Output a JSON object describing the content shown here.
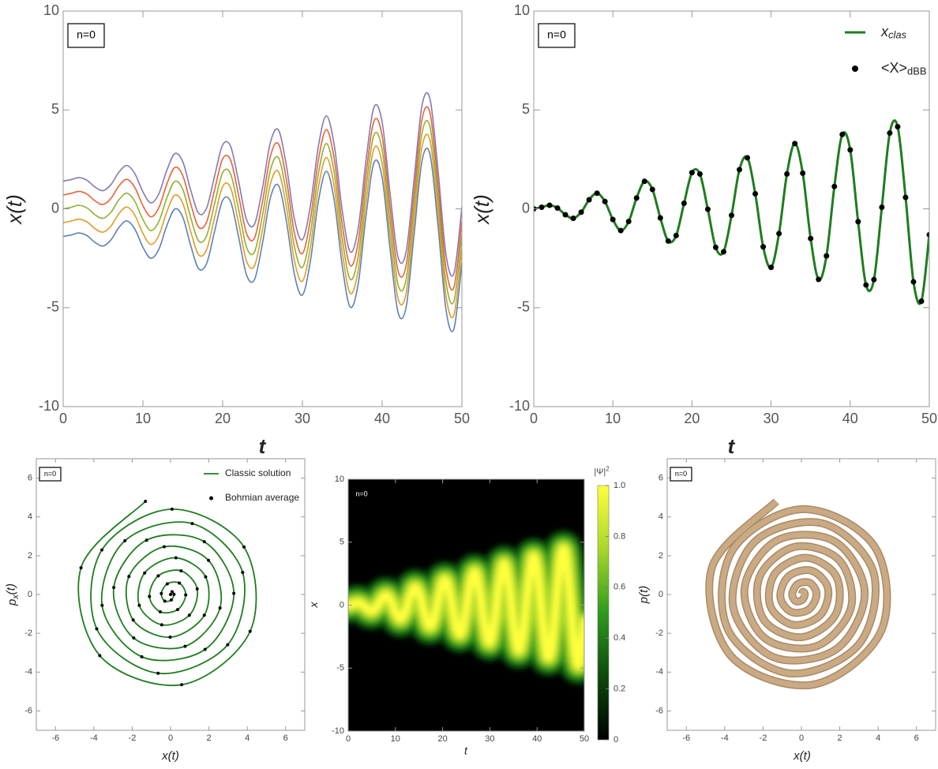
{
  "chart_data": [
    {
      "type": "line",
      "annotation": "n=0",
      "xlabel": "t",
      "ylabel": "x(t)",
      "x": [
        0,
        1,
        2,
        3,
        4,
        5,
        6,
        7,
        8,
        9,
        10,
        11,
        12,
        13,
        14,
        15,
        16,
        17,
        18,
        19,
        20,
        21,
        22,
        23,
        24,
        25,
        26,
        27,
        28,
        29,
        30,
        31,
        32,
        33,
        34,
        35,
        36,
        37,
        38,
        39,
        40,
        41,
        42,
        43,
        44,
        45,
        46,
        47,
        48,
        49,
        50
      ],
      "xlim": [
        0,
        50
      ],
      "xticks": [
        0,
        10,
        20,
        30,
        40,
        50
      ],
      "ylim": [
        -10,
        10
      ],
      "yticks": [
        -10,
        -5,
        0,
        5,
        10
      ],
      "series": [
        {
          "color": "#5e81b5",
          "values": [
            -1.4,
            -1.32,
            -1.22,
            -1.36,
            -1.7,
            -1.88,
            -1.57,
            -0.94,
            -0.61,
            -1.03,
            -1.94,
            -2.5,
            -2.04,
            -0.85,
            -0.01,
            -0.42,
            -1.86,
            -3.03,
            -2.75,
            -1.12,
            0.43,
            0.36,
            -1.42,
            -3.35,
            -3.57,
            -1.73,
            0.58,
            1.18,
            -0.64,
            -3.32,
            -4.36,
            -2.65,
            0.36,
            1.9,
            0.4,
            -2.9,
            -4.97,
            -3.78,
            -0.27,
            2.36,
            1.58,
            -2.05,
            -5.25,
            -4.98,
            -1.32,
            2.43,
            2.75,
            -0.82,
            -5.09,
            -6.07,
            -2.71
          ]
        },
        {
          "color": "#e19c24",
          "values": [
            -0.7,
            -0.62,
            -0.52,
            -0.66,
            -1,
            -1.18,
            -0.87,
            -0.24,
            0.09,
            -0.33,
            -1.24,
            -1.8,
            -1.34,
            -0.15,
            0.69,
            0.28,
            -1.16,
            -2.33,
            -2.05,
            -0.42,
            1.13,
            1.06,
            -0.72,
            -2.65,
            -2.87,
            -1.03,
            1.28,
            1.88,
            0.06,
            -2.62,
            -3.66,
            -1.95,
            1.06,
            2.6,
            1.1,
            -2.2,
            -4.27,
            -3.08,
            0.43,
            3.06,
            2.28,
            -1.35,
            -4.55,
            -4.28,
            -0.62,
            3.13,
            3.45,
            -0.12,
            -4.39,
            -5.37,
            -2.01
          ]
        },
        {
          "color": "#8fb032",
          "values": [
            0,
            0.08,
            0.18,
            0.04,
            -0.3,
            -0.48,
            -0.17,
            0.46,
            0.79,
            0.37,
            -0.54,
            -1.1,
            -0.64,
            0.55,
            1.39,
            0.98,
            -0.46,
            -1.63,
            -1.35,
            0.28,
            1.83,
            1.76,
            -0.02,
            -1.95,
            -2.17,
            -0.33,
            1.98,
            2.58,
            0.76,
            -1.92,
            -2.96,
            -1.25,
            1.76,
            3.3,
            1.8,
            -1.5,
            -3.57,
            -2.38,
            1.13,
            3.76,
            2.98,
            -0.65,
            -3.85,
            -3.58,
            0.08,
            3.83,
            4.15,
            0.58,
            -3.69,
            -4.67,
            -1.31
          ]
        },
        {
          "color": "#eb6235",
          "values": [
            0.7,
            0.78,
            0.88,
            0.74,
            0.4,
            0.22,
            0.53,
            1.16,
            1.49,
            1.07,
            0.16,
            -0.4,
            0.06,
            1.25,
            2.09,
            1.68,
            0.24,
            -0.93,
            -0.65,
            0.98,
            2.53,
            2.46,
            0.68,
            -1.25,
            -1.47,
            0.37,
            2.68,
            3.28,
            1.46,
            -1.22,
            -2.26,
            -0.55,
            2.46,
            4,
            2.5,
            -0.8,
            -2.87,
            -1.68,
            1.83,
            4.46,
            3.68,
            0.05,
            -3.15,
            -2.88,
            0.78,
            4.53,
            4.85,
            1.28,
            -2.99,
            -3.97,
            -0.61
          ]
        },
        {
          "color": "#8778b3",
          "values": [
            1.4,
            1.48,
            1.58,
            1.44,
            1.1,
            0.92,
            1.23,
            1.86,
            2.19,
            1.77,
            0.86,
            0.3,
            0.76,
            1.95,
            2.79,
            2.38,
            0.94,
            -0.23,
            0.05,
            1.68,
            3.23,
            3.16,
            1.38,
            -0.55,
            -0.77,
            1.07,
            3.38,
            3.98,
            2.16,
            -0.52,
            -1.56,
            0.15,
            3.16,
            4.7,
            3.2,
            -0.1,
            -2.17,
            -0.98,
            2.53,
            5.16,
            4.38,
            0.75,
            -2.45,
            -2.18,
            1.48,
            5.23,
            5.55,
            1.98,
            -2.29,
            -3.27,
            0.09
          ]
        }
      ]
    },
    {
      "type": "line",
      "annotation": "n=0",
      "xlabel": "t",
      "ylabel": "x(t)",
      "legend": "top-right",
      "x": [
        0,
        1,
        2,
        3,
        4,
        5,
        6,
        7,
        8,
        9,
        10,
        11,
        12,
        13,
        14,
        15,
        16,
        17,
        18,
        19,
        20,
        21,
        22,
        23,
        24,
        25,
        26,
        27,
        28,
        29,
        30,
        31,
        32,
        33,
        34,
        35,
        36,
        37,
        38,
        39,
        40,
        41,
        42,
        43,
        44,
        45,
        46,
        47,
        48,
        49,
        50
      ],
      "xlim": [
        0,
        50
      ],
      "xticks": [
        0,
        10,
        20,
        30,
        40,
        50
      ],
      "ylim": [
        -10,
        10
      ],
      "yticks": [
        -10,
        -5,
        0,
        5,
        10
      ],
      "series": [
        {
          "name": "x",
          "name_sub": "clas",
          "color": "#1e7d1e",
          "style": "line",
          "values": [
            0,
            0.08,
            0.18,
            0.04,
            -0.3,
            -0.48,
            -0.17,
            0.46,
            0.79,
            0.37,
            -0.54,
            -1.1,
            -0.64,
            0.55,
            1.39,
            0.98,
            -0.46,
            -1.63,
            -1.35,
            0.28,
            1.83,
            1.76,
            -0.02,
            -1.95,
            -2.17,
            -0.33,
            1.98,
            2.58,
            0.76,
            -1.92,
            -2.96,
            -1.25,
            1.76,
            3.3,
            1.8,
            -1.5,
            -3.57,
            -2.38,
            1.13,
            3.76,
            2.98,
            -0.65,
            -3.85,
            -3.58,
            0.08,
            3.83,
            4.15,
            0.58,
            -3.69,
            -4.67,
            -1.31
          ]
        },
        {
          "name": "<X>",
          "name_sub": "dBB",
          "color": "#000000",
          "style": "points",
          "values": [
            0,
            0.08,
            0.18,
            0.04,
            -0.3,
            -0.48,
            -0.17,
            0.46,
            0.79,
            0.37,
            -0.54,
            -1.1,
            -0.64,
            0.55,
            1.39,
            0.98,
            -0.46,
            -1.63,
            -1.35,
            0.28,
            1.83,
            1.76,
            -0.02,
            -1.95,
            -2.17,
            -0.33,
            1.98,
            2.58,
            0.76,
            -1.92,
            -2.96,
            -1.25,
            1.76,
            3.3,
            1.8,
            -1.5,
            -3.57,
            -2.38,
            1.13,
            3.76,
            2.98,
            -0.65,
            -3.85,
            -3.58,
            0.08,
            3.83,
            4.15,
            0.58,
            -3.69,
            -4.67,
            -1.31
          ]
        }
      ]
    },
    {
      "type": "parametric",
      "annotation": "n=0",
      "xlabel": "x(t)",
      "ylabel": "p",
      "ylabel_sub": "x",
      "ylabel_tail": "(t)",
      "legend": "top-right",
      "xlim": [
        -7,
        7
      ],
      "xticks": [
        -6,
        -4,
        -2,
        0,
        2,
        4,
        6
      ],
      "ylim": [
        -7,
        7
      ],
      "yticks": [
        -6,
        -4,
        -2,
        0,
        2,
        4,
        6
      ],
      "series": [
        {
          "name": "Classic solution",
          "color": "#1e7d1e",
          "style": "line",
          "x": [
            0,
            0.08,
            0.18,
            0.04,
            -0.3,
            -0.48,
            -0.17,
            0.46,
            0.79,
            0.37,
            -0.54,
            -1.1,
            -0.64,
            0.55,
            1.39,
            0.98,
            -0.46,
            -1.63,
            -1.35,
            0.28,
            1.83,
            1.76,
            -0.02,
            -1.95,
            -2.17,
            -0.33,
            1.98,
            2.58,
            0.76,
            -1.92,
            -2.96,
            -1.25,
            1.76,
            3.3,
            1.8,
            -1.5,
            -3.57,
            -2.38,
            1.13,
            3.76,
            2.98,
            -0.65,
            -3.85,
            -3.58,
            0.08,
            3.83,
            4.15,
            0.58,
            -3.69,
            -4.67,
            -1.31
          ],
          "values": [
            0,
            0.14,
            0.01,
            -0.28,
            -0.34,
            0.05,
            0.55,
            0.59,
            -0.02,
            -0.78,
            -0.89,
            -0.1,
            0.96,
            1.22,
            0.29,
            -1.07,
            -1.56,
            -0.56,
            1.11,
            1.89,
            0.91,
            -1.07,
            -2.2,
            -1.31,
            0.93,
            2.46,
            1.76,
            -0.69,
            -2.67,
            -2.24,
            0.36,
            2.8,
            2.72,
            0.06,
            -2.83,
            -3.21,
            -0.56,
            2.77,
            3.66,
            1.14,
            -2.59,
            -4.06,
            -1.77,
            2.3,
            4.4,
            2.45,
            -1.9,
            -4.65,
            -3.15,
            1.38,
            4.8
          ]
        },
        {
          "name": "Bohmian average",
          "color": "#000000",
          "style": "points",
          "x": [
            0,
            0.08,
            0.18,
            0.04,
            -0.3,
            -0.48,
            -0.17,
            0.46,
            0.79,
            0.37,
            -0.54,
            -1.1,
            -0.64,
            0.55,
            1.39,
            0.98,
            -0.46,
            -1.63,
            -1.35,
            0.28,
            1.83,
            1.76,
            -0.02,
            -1.95,
            -2.17,
            -0.33,
            1.98,
            2.58,
            0.76,
            -1.92,
            -2.96,
            -1.25,
            1.76,
            3.3,
            1.8,
            -1.5,
            -3.57,
            -2.38,
            1.13,
            3.76,
            2.98,
            -0.65,
            -3.85,
            -3.58,
            0.08,
            3.83,
            4.15,
            0.58,
            -3.69,
            -4.67,
            -1.31
          ],
          "values": [
            0,
            0.14,
            0.01,
            -0.28,
            -0.34,
            0.05,
            0.55,
            0.59,
            -0.02,
            -0.78,
            -0.89,
            -0.1,
            0.96,
            1.22,
            0.29,
            -1.07,
            -1.56,
            -0.56,
            1.11,
            1.89,
            0.91,
            -1.07,
            -2.2,
            -1.31,
            0.93,
            2.46,
            1.76,
            -0.69,
            -2.67,
            -2.24,
            0.36,
            2.8,
            2.72,
            0.06,
            -2.83,
            -3.21,
            -0.56,
            2.77,
            3.66,
            1.14,
            -2.59,
            -4.06,
            -1.77,
            2.3,
            4.4,
            2.45,
            -1.9,
            -4.65,
            -3.15,
            1.38,
            4.8
          ]
        }
      ]
    },
    {
      "type": "density",
      "annotation": "n=0",
      "xlabel": "t",
      "ylabel": "x",
      "x": [
        0,
        1,
        2,
        3,
        4,
        5,
        6,
        7,
        8,
        9,
        10,
        11,
        12,
        13,
        14,
        15,
        16,
        17,
        18,
        19,
        20,
        21,
        22,
        23,
        24,
        25,
        26,
        27,
        28,
        29,
        30,
        31,
        32,
        33,
        34,
        35,
        36,
        37,
        38,
        39,
        40,
        41,
        42,
        43,
        44,
        45,
        46,
        47,
        48,
        49,
        50
      ],
      "values": [
        0,
        0.08,
        0.18,
        0.04,
        -0.3,
        -0.48,
        -0.17,
        0.46,
        0.79,
        0.37,
        -0.54,
        -1.1,
        -0.64,
        0.55,
        1.39,
        0.98,
        -0.46,
        -1.63,
        -1.35,
        0.28,
        1.83,
        1.76,
        -0.02,
        -1.95,
        -2.17,
        -0.33,
        1.98,
        2.58,
        0.76,
        -1.92,
        -2.96,
        -1.25,
        1.76,
        3.3,
        1.8,
        -1.5,
        -3.57,
        -2.38,
        1.13,
        3.76,
        2.98,
        -0.65,
        -3.85,
        -3.58,
        0.08,
        3.83,
        4.15,
        0.58,
        -3.69,
        -4.67,
        -1.31
      ],
      "xlim": [
        0,
        50
      ],
      "xticks": [
        0,
        10,
        20,
        30,
        40,
        50
      ],
      "ylim": [
        -10,
        10
      ],
      "yticks": [
        -10,
        -5,
        0,
        5,
        10
      ],
      "colormap": [
        "#000000",
        "#0c4a0c",
        "#2e9a1c",
        "#a8d82a",
        "#ffff3c"
      ],
      "clim": [
        0,
        1
      ],
      "cticks": [
        0,
        0.2,
        0.4,
        0.6,
        0.8,
        {
          "value": 1,
          "label": "1.0"
        }
      ],
      "colorbar_label": "|Ψ|",
      "colorbar_label_sup": "2"
    },
    {
      "type": "parametric",
      "annotation": "n=0",
      "xlabel": "x(t)",
      "ylabel": "p(t)",
      "xlim": [
        -7,
        7
      ],
      "xticks": [
        -6,
        -4,
        -2,
        0,
        2,
        4,
        6
      ],
      "ylim": [
        -7,
        7
      ],
      "yticks": [
        -6,
        -4,
        -2,
        0,
        2,
        4,
        6
      ],
      "series": [
        {
          "color": "#c9aa84",
          "style": "band",
          "x": [
            0,
            0.08,
            0.18,
            0.04,
            -0.3,
            -0.48,
            -0.17,
            0.46,
            0.79,
            0.37,
            -0.54,
            -1.1,
            -0.64,
            0.55,
            1.39,
            0.98,
            -0.46,
            -1.63,
            -1.35,
            0.28,
            1.83,
            1.76,
            -0.02,
            -1.95,
            -2.17,
            -0.33,
            1.98,
            2.58,
            0.76,
            -1.92,
            -2.96,
            -1.25,
            1.76,
            3.3,
            1.8,
            -1.5,
            -3.57,
            -2.38,
            1.13,
            3.76,
            2.98,
            -0.65,
            -3.85,
            -3.58,
            0.08,
            3.83,
            4.15,
            0.58,
            -3.69,
            -4.67,
            -1.31
          ],
          "values": [
            0,
            0.14,
            0.01,
            -0.28,
            -0.34,
            0.05,
            0.55,
            0.59,
            -0.02,
            -0.78,
            -0.89,
            -0.1,
            0.96,
            1.22,
            0.29,
            -1.07,
            -1.56,
            -0.56,
            1.11,
            1.89,
            0.91,
            -1.07,
            -2.2,
            -1.31,
            0.93,
            2.46,
            1.76,
            -0.69,
            -2.67,
            -2.24,
            0.36,
            2.8,
            2.72,
            0.06,
            -2.83,
            -3.21,
            -0.56,
            2.77,
            3.66,
            1.14,
            -2.59,
            -4.06,
            -1.77,
            2.3,
            4.4,
            2.45,
            -1.9,
            -4.65,
            -3.15,
            1.38,
            4.8
          ]
        }
      ]
    }
  ]
}
